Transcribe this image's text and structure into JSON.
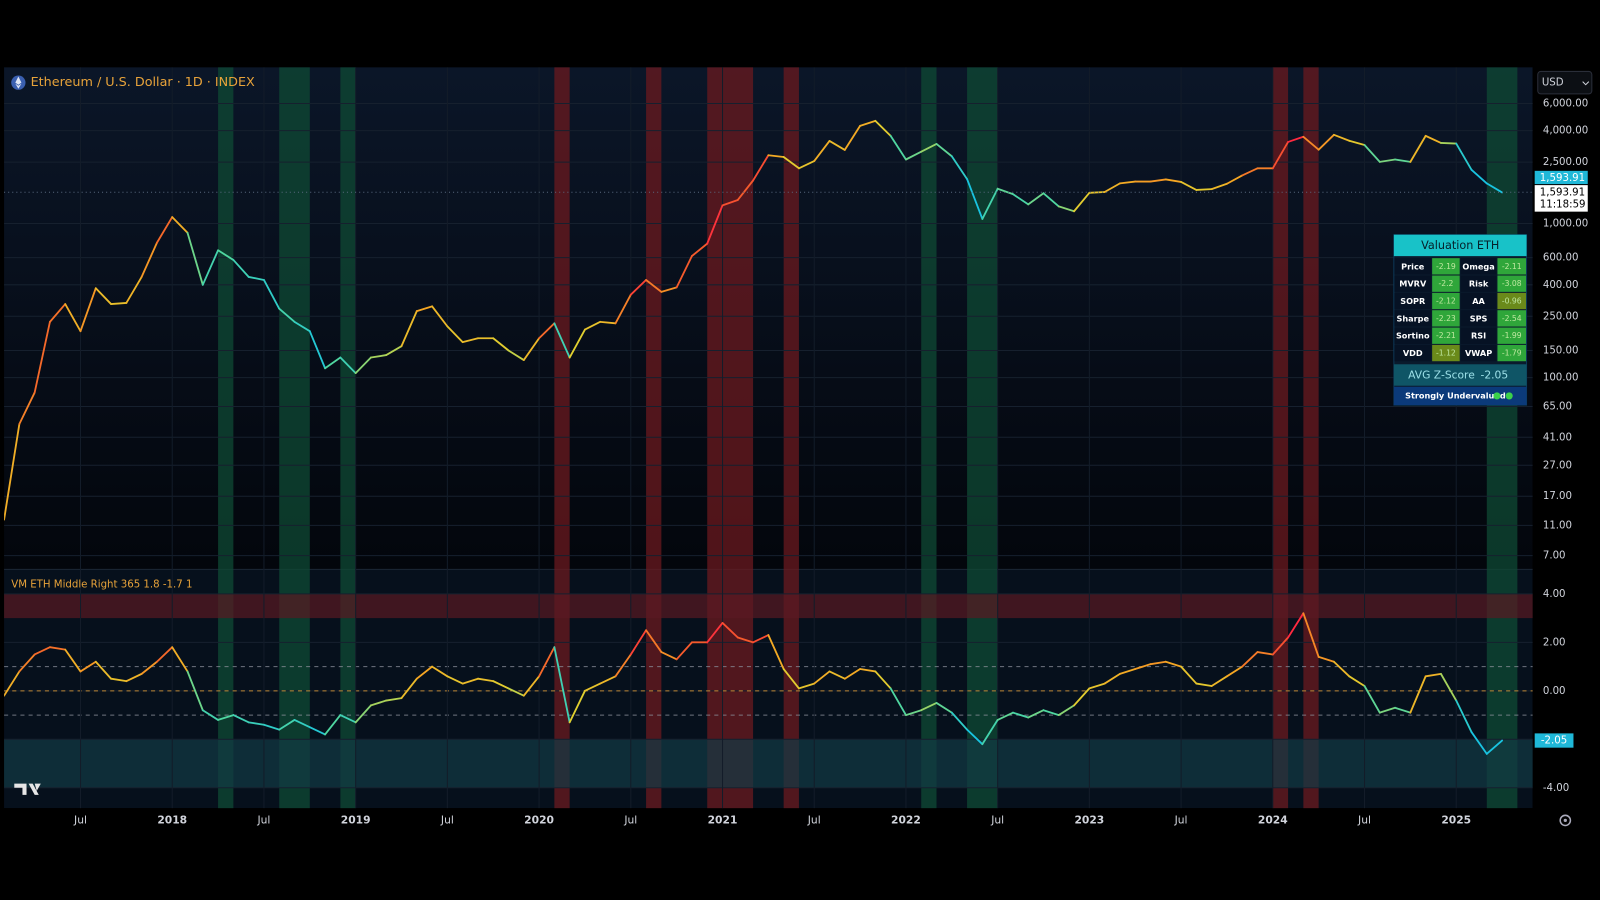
{
  "chart_data": [
    {
      "type": "line",
      "title": "Ethereum / U.S. Dollar · 1D · INDEX",
      "log_scale": true,
      "grid": true,
      "currency": "USD",
      "countdown": "11:18:59",
      "last_price": {
        "value": 1593.91,
        "label": "1,593.91"
      },
      "xlim": [
        "2017-02",
        "2025-06"
      ],
      "ylim": [
        5.7,
        10300
      ],
      "yticks": [
        {
          "value": 6000,
          "label": "6,000.00"
        },
        {
          "value": 4000,
          "label": "4,000.00"
        },
        {
          "value": 2500,
          "label": "2,500.00"
        },
        {
          "value": 1000,
          "label": "1,000.00"
        },
        {
          "value": 600,
          "label": "600.00"
        },
        {
          "value": 400,
          "label": "400.00"
        },
        {
          "value": 250,
          "label": "250.00"
        },
        {
          "value": 150,
          "label": "150.00"
        },
        {
          "value": 100,
          "label": "100.00"
        },
        {
          "value": 65,
          "label": "65.00"
        },
        {
          "value": 41,
          "label": "41.00"
        },
        {
          "value": 27,
          "label": "27.00"
        },
        {
          "value": 17,
          "label": "17.00"
        },
        {
          "value": 11,
          "label": "11.00"
        },
        {
          "value": 7,
          "label": "7.00"
        }
      ],
      "x": [
        "2017-02",
        "2017-03",
        "2017-04",
        "2017-05",
        "2017-06",
        "2017-07",
        "2017-08",
        "2017-09",
        "2017-10",
        "2017-11",
        "2017-12",
        "2018-01",
        "2018-02",
        "2018-03",
        "2018-04",
        "2018-05",
        "2018-06",
        "2018-07",
        "2018-08",
        "2018-09",
        "2018-10",
        "2018-11",
        "2018-12",
        "2019-01",
        "2019-02",
        "2019-03",
        "2019-04",
        "2019-05",
        "2019-06",
        "2019-07",
        "2019-08",
        "2019-09",
        "2019-10",
        "2019-11",
        "2019-12",
        "2020-01",
        "2020-02",
        "2020-03",
        "2020-04",
        "2020-05",
        "2020-06",
        "2020-07",
        "2020-08",
        "2020-09",
        "2020-10",
        "2020-11",
        "2020-12",
        "2021-01",
        "2021-02",
        "2021-03",
        "2021-04",
        "2021-05",
        "2021-06",
        "2021-07",
        "2021-08",
        "2021-09",
        "2021-10",
        "2021-11",
        "2021-12",
        "2022-01",
        "2022-02",
        "2022-03",
        "2022-04",
        "2022-05",
        "2022-06",
        "2022-07",
        "2022-08",
        "2022-09",
        "2022-10",
        "2022-11",
        "2022-12",
        "2023-01",
        "2023-02",
        "2023-03",
        "2023-04",
        "2023-05",
        "2023-06",
        "2023-07",
        "2023-08",
        "2023-09",
        "2023-10",
        "2023-11",
        "2023-12",
        "2024-01",
        "2024-02",
        "2024-03",
        "2024-04",
        "2024-05",
        "2024-06",
        "2024-07",
        "2024-08",
        "2024-09",
        "2024-10",
        "2024-11",
        "2024-12",
        "2025-01",
        "2025-02",
        "2025-03",
        "2025-04"
      ],
      "values": [
        12,
        50,
        80,
        230,
        300,
        200,
        380,
        300,
        305,
        450,
        750,
        1100,
        870,
        400,
        670,
        580,
        450,
        430,
        280,
        230,
        200,
        115,
        135,
        107,
        135,
        140,
        160,
        270,
        290,
        215,
        170,
        180,
        180,
        150,
        130,
        180,
        225,
        135,
        205,
        230,
        225,
        345,
        430,
        360,
        385,
        615,
        740,
        1310,
        1420,
        1900,
        2770,
        2700,
        2280,
        2540,
        3430,
        3000,
        4300,
        4630,
        3700,
        2600,
        2920,
        3280,
        2730,
        1940,
        1070,
        1680,
        1550,
        1330,
        1570,
        1290,
        1200,
        1580,
        1600,
        1820,
        1870,
        1870,
        1930,
        1860,
        1650,
        1670,
        1810,
        2050,
        2280,
        2280,
        3380,
        3650,
        3010,
        3760,
        3440,
        3230,
        2510,
        2600,
        2510,
        3700,
        3330,
        3300,
        2230,
        1820,
        1590
      ],
      "shaded_ranges": [
        {
          "from": "2018-04",
          "to": "2018-04",
          "color": "#0f4a34"
        },
        {
          "from": "2018-08",
          "to": "2018-09",
          "color": "#0f4a34"
        },
        {
          "from": "2018-12",
          "to": "2018-12",
          "color": "#0f4a34"
        },
        {
          "from": "2020-02",
          "to": "2020-02",
          "color": "#6b1a1f"
        },
        {
          "from": "2020-08",
          "to": "2020-08",
          "color": "#6b1a1f"
        },
        {
          "from": "2020-12",
          "to": "2020-12",
          "color": "#6b1a1f"
        },
        {
          "from": "2021-01",
          "to": "2021-02",
          "color": "#6b1a1f"
        },
        {
          "from": "2021-05",
          "to": "2021-05",
          "color": "#6b1a1f"
        },
        {
          "from": "2022-02",
          "to": "2022-02",
          "color": "#0f4a34"
        },
        {
          "from": "2022-05",
          "to": "2022-06",
          "color": "#0f4a34"
        },
        {
          "from": "2024-01",
          "to": "2024-01",
          "color": "#6b1a1f"
        },
        {
          "from": "2024-03",
          "to": "2024-03",
          "color": "#6b1a1f"
        },
        {
          "from": "2025-03",
          "to": "2025-04",
          "color": "#0f4a34"
        }
      ]
    },
    {
      "type": "line",
      "title": "VM ETH Middle Right 365 1.8 -1.7 1",
      "grid": true,
      "last_value": -2.05,
      "xlim": [
        "2017-02",
        "2025-06"
      ],
      "ylim": [
        -4.84,
        5.01
      ],
      "yticks": [
        {
          "value": 4,
          "label": "4.00"
        },
        {
          "value": 2,
          "label": "2.00"
        },
        {
          "value": 0,
          "label": "0.00"
        },
        {
          "value": -2,
          "label": "-2.00"
        },
        {
          "value": -4,
          "label": "-4.00"
        }
      ],
      "xticks": [
        {
          "value": "2017-07",
          "label": "Jul"
        },
        {
          "value": "2018-01",
          "label": "2018"
        },
        {
          "value": "2018-07",
          "label": "Jul"
        },
        {
          "value": "2019-01",
          "label": "2019"
        },
        {
          "value": "2019-07",
          "label": "Jul"
        },
        {
          "value": "2020-01",
          "label": "2020"
        },
        {
          "value": "2020-07",
          "label": "Jul"
        },
        {
          "value": "2021-01",
          "label": "2021"
        },
        {
          "value": "2021-07",
          "label": "Jul"
        },
        {
          "value": "2022-01",
          "label": "2022"
        },
        {
          "value": "2022-07",
          "label": "Jul"
        },
        {
          "value": "2023-01",
          "label": "2023"
        },
        {
          "value": "2023-07",
          "label": "Jul"
        },
        {
          "value": "2024-01",
          "label": "2024"
        },
        {
          "value": "2024-07",
          "label": "Jul"
        },
        {
          "value": "2025-01",
          "label": "2025"
        }
      ],
      "hlines": [
        1,
        0,
        -1
      ],
      "zones": [
        {
          "from": 3,
          "to": 4,
          "color": "#5a1a22"
        },
        {
          "from": -4,
          "to": -2,
          "color": "#123a45"
        }
      ],
      "x": [
        "2017-02",
        "2017-03",
        "2017-04",
        "2017-05",
        "2017-06",
        "2017-07",
        "2017-08",
        "2017-09",
        "2017-10",
        "2017-11",
        "2017-12",
        "2018-01",
        "2018-02",
        "2018-03",
        "2018-04",
        "2018-05",
        "2018-06",
        "2018-07",
        "2018-08",
        "2018-09",
        "2018-10",
        "2018-11",
        "2018-12",
        "2019-01",
        "2019-02",
        "2019-03",
        "2019-04",
        "2019-05",
        "2019-06",
        "2019-07",
        "2019-08",
        "2019-09",
        "2019-10",
        "2019-11",
        "2019-12",
        "2020-01",
        "2020-02",
        "2020-03",
        "2020-04",
        "2020-05",
        "2020-06",
        "2020-07",
        "2020-08",
        "2020-09",
        "2020-10",
        "2020-11",
        "2020-12",
        "2021-01",
        "2021-02",
        "2021-03",
        "2021-04",
        "2021-05",
        "2021-06",
        "2021-07",
        "2021-08",
        "2021-09",
        "2021-10",
        "2021-11",
        "2021-12",
        "2022-01",
        "2022-02",
        "2022-03",
        "2022-04",
        "2022-05",
        "2022-06",
        "2022-07",
        "2022-08",
        "2022-09",
        "2022-10",
        "2022-11",
        "2022-12",
        "2023-01",
        "2023-02",
        "2023-03",
        "2023-04",
        "2023-05",
        "2023-06",
        "2023-07",
        "2023-08",
        "2023-09",
        "2023-10",
        "2023-11",
        "2023-12",
        "2024-01",
        "2024-02",
        "2024-03",
        "2024-04",
        "2024-05",
        "2024-06",
        "2024-07",
        "2024-08",
        "2024-09",
        "2024-10",
        "2024-11",
        "2024-12",
        "2025-01",
        "2025-02",
        "2025-03",
        "2025-04"
      ],
      "values": [
        -0.2,
        0.8,
        1.5,
        1.8,
        1.7,
        0.8,
        1.2,
        0.5,
        0.4,
        0.7,
        1.2,
        1.8,
        0.8,
        -0.8,
        -1.2,
        -1.0,
        -1.3,
        -1.4,
        -1.6,
        -1.2,
        -1.5,
        -1.8,
        -1.0,
        -1.3,
        -0.6,
        -0.4,
        -0.3,
        0.5,
        1.0,
        0.6,
        0.3,
        0.5,
        0.4,
        0.1,
        -0.2,
        0.6,
        1.8,
        -1.3,
        0,
        0.3,
        0.6,
        1.5,
        2.5,
        1.6,
        1.3,
        2.0,
        2.0,
        2.8,
        2.2,
        2.0,
        2.3,
        0.9,
        0.1,
        0.3,
        0.8,
        0.5,
        0.9,
        0.8,
        0.1,
        -1.0,
        -0.8,
        -0.5,
        -0.9,
        -1.6,
        -2.2,
        -1.2,
        -0.9,
        -1.1,
        -0.8,
        -1.0,
        -0.6,
        0.1,
        0.3,
        0.7,
        0.9,
        1.1,
        1.2,
        1.0,
        0.3,
        0.2,
        0.6,
        1.0,
        1.6,
        1.5,
        2.2,
        3.2,
        1.4,
        1.2,
        0.6,
        0.2,
        -0.9,
        -0.7,
        -0.9,
        0.6,
        0.7,
        -0.4,
        -1.7,
        -2.6,
        -2.05
      ]
    }
  ],
  "table": {
    "title": "Valuation ETH",
    "rows": [
      [
        "Price",
        -2.19,
        "Omega",
        -2.11
      ],
      [
        "MVRV",
        -2.2,
        "Risk",
        -3.08
      ],
      [
        "SOPR",
        -2.12,
        "AA",
        -0.96
      ],
      [
        "Sharpe",
        -2.23,
        "SPS",
        -2.54
      ],
      [
        "Sortino",
        -2.21,
        "RSI",
        -1.99
      ],
      [
        "VDD",
        -1.12,
        "VWAP",
        -1.79
      ]
    ],
    "avg_label": "AVG Z-Score",
    "avg_value": -2.05,
    "status": "Strongly Undervalued"
  }
}
